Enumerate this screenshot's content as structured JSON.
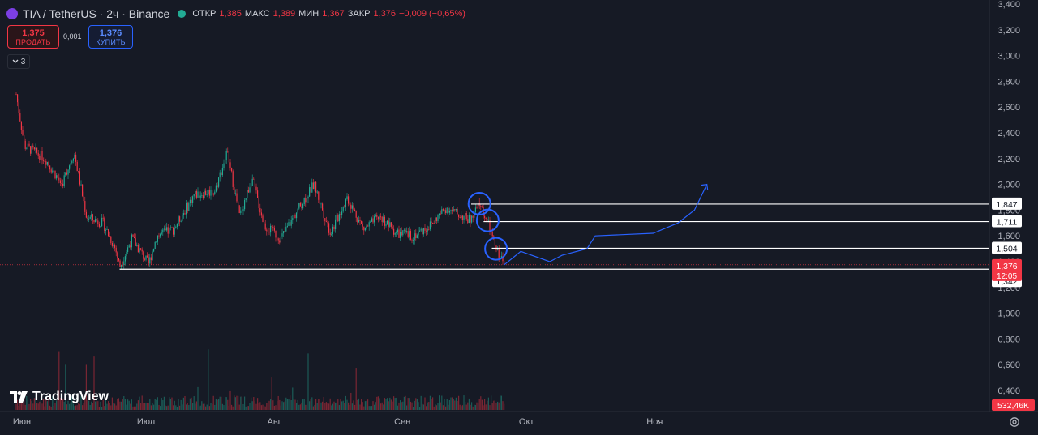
{
  "header": {
    "symbol_title": "TIA / TetherUS · 2ч · Binance",
    "ohlc": [
      {
        "key": "ОТКР",
        "value": "1,385"
      },
      {
        "key": "МАКС",
        "value": "1,389"
      },
      {
        "key": "МИН",
        "value": "1,367"
      },
      {
        "key": "ЗАКР",
        "value": "1,376"
      },
      {
        "key": "",
        "value": "−0,009 (−0,65%)"
      }
    ]
  },
  "trade": {
    "sell_price": "1,375",
    "sell_label": "ПРОДАТЬ",
    "spread": "0,001",
    "buy_price": "1,376",
    "buy_label": "КУПИТЬ"
  },
  "indicators_toggle": {
    "count": "3"
  },
  "logo_text": "TradingView",
  "colors": {
    "background": "#161a25",
    "up": "#22ab94",
    "down": "#f23645",
    "projection": "#2962ff",
    "level_line": "#ffffff"
  },
  "chart_data": {
    "type": "candlestick",
    "y_ticks": [
      "3,400",
      "3,200",
      "3,000",
      "2,800",
      "2,600",
      "2,400",
      "2,200",
      "2,000",
      "1,800",
      "1,600",
      "1,400",
      "1,200",
      "1,000",
      "0,800",
      "0,600",
      "0,400"
    ],
    "ylim": [
      0.3,
      3.4
    ],
    "x_ticks": [
      "Июн",
      "Июл",
      "Авг",
      "Сен",
      "Окт",
      "Ноя"
    ],
    "price_path": [
      {
        "date": "2024-06-01",
        "price": 2.7
      },
      {
        "date": "2024-06-03",
        "price": 2.3
      },
      {
        "date": "2024-06-08",
        "price": 2.2
      },
      {
        "date": "2024-06-12",
        "price": 2.0
      },
      {
        "date": "2024-06-15",
        "price": 2.25
      },
      {
        "date": "2024-06-18",
        "price": 1.75
      },
      {
        "date": "2024-06-22",
        "price": 1.7
      },
      {
        "date": "2024-06-25",
        "price": 1.5
      },
      {
        "date": "2024-06-26",
        "price": 1.36
      },
      {
        "date": "2024-06-29",
        "price": 1.58
      },
      {
        "date": "2024-07-03",
        "price": 1.38
      },
      {
        "date": "2024-07-05",
        "price": 1.6
      },
      {
        "date": "2024-07-09",
        "price": 1.65
      },
      {
        "date": "2024-07-14",
        "price": 1.92
      },
      {
        "date": "2024-07-19",
        "price": 1.95
      },
      {
        "date": "2024-07-22",
        "price": 2.25
      },
      {
        "date": "2024-07-25",
        "price": 1.75
      },
      {
        "date": "2024-07-28",
        "price": 2.05
      },
      {
        "date": "2024-07-31",
        "price": 1.68
      },
      {
        "date": "2024-08-04",
        "price": 1.58
      },
      {
        "date": "2024-08-08",
        "price": 1.8
      },
      {
        "date": "2024-08-12",
        "price": 2.0
      },
      {
        "date": "2024-08-16",
        "price": 1.62
      },
      {
        "date": "2024-08-20",
        "price": 1.9
      },
      {
        "date": "2024-08-24",
        "price": 1.65
      },
      {
        "date": "2024-08-28",
        "price": 1.75
      },
      {
        "date": "2024-09-01",
        "price": 1.62
      },
      {
        "date": "2024-09-05",
        "price": 1.6
      },
      {
        "date": "2024-09-09",
        "price": 1.68
      },
      {
        "date": "2024-09-13",
        "price": 1.82
      },
      {
        "date": "2024-09-15",
        "price": 1.78
      },
      {
        "date": "2024-09-19",
        "price": 1.72
      },
      {
        "date": "2024-09-21",
        "price": 1.85
      },
      {
        "date": "2024-09-23",
        "price": 1.7
      },
      {
        "date": "2024-09-25",
        "price": 1.5
      },
      {
        "date": "2024-09-27",
        "price": 1.376
      }
    ],
    "volume_pane": {
      "last_value": "532,46K"
    },
    "horizontal_levels": [
      "1,847",
      "1,711",
      "1,504",
      "1,342"
    ],
    "current_price": {
      "value": "1,376",
      "countdown": "12:05"
    },
    "marked_circles": [
      {
        "date": "2024-09-21",
        "price": 1.85
      },
      {
        "date": "2024-09-23",
        "price": 1.72
      },
      {
        "date": "2024-09-25",
        "price": 1.5
      }
    ],
    "projection_path": [
      {
        "date": "2024-09-27",
        "price": 1.376
      },
      {
        "date": "2024-10-01",
        "price": 1.48
      },
      {
        "date": "2024-10-08",
        "price": 1.4
      },
      {
        "date": "2024-10-11",
        "price": 1.45
      },
      {
        "date": "2024-10-17",
        "price": 1.5
      },
      {
        "date": "2024-10-19",
        "price": 1.6
      },
      {
        "date": "2024-11-02",
        "price": 1.62
      },
      {
        "date": "2024-11-08",
        "price": 1.7
      },
      {
        "date": "2024-11-12",
        "price": 1.8
      },
      {
        "date": "2024-11-15",
        "price": 2.0
      }
    ]
  }
}
